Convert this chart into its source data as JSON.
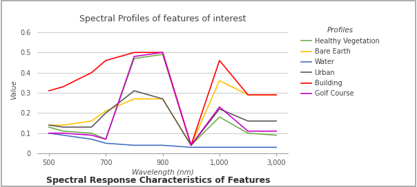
{
  "title": "Spectral Profiles of features of interest",
  "subtitle": "Spectral Response Characteristics of Features",
  "xlabel": "Wavelength (nm)",
  "ylabel": "Value",
  "legend_title": "Profiles",
  "ylim": [
    0.0,
    0.63
  ],
  "yticks": [
    0.0,
    0.1,
    0.2,
    0.3,
    0.4,
    0.5,
    0.6
  ],
  "xtick_positions": [
    0,
    1,
    2,
    3,
    4
  ],
  "xtick_labels": [
    "500",
    "700",
    "900",
    "1,000",
    "3,000"
  ],
  "series": {
    "Healthy Vegetation": {
      "color": "#70ad47",
      "x": [
        0,
        0.25,
        0.75,
        1.0,
        1.5,
        2.0,
        2.5,
        3.0,
        3.5,
        4.0
      ],
      "y": [
        0.13,
        0.11,
        0.1,
        0.07,
        0.47,
        0.49,
        0.04,
        0.18,
        0.1,
        0.09
      ]
    },
    "Bare Earth": {
      "color": "#ffc000",
      "x": [
        0,
        0.25,
        0.75,
        1.0,
        1.5,
        2.0,
        2.5,
        3.0,
        3.5,
        4.0
      ],
      "y": [
        0.14,
        0.14,
        0.16,
        0.21,
        0.27,
        0.27,
        0.04,
        0.36,
        0.29,
        0.29
      ]
    },
    "Water": {
      "color": "#4472c4",
      "x": [
        0,
        0.25,
        0.75,
        1.0,
        1.5,
        2.0,
        2.5,
        3.0,
        3.5,
        4.0
      ],
      "y": [
        0.1,
        0.09,
        0.07,
        0.05,
        0.04,
        0.04,
        0.03,
        0.03,
        0.03,
        0.03
      ]
    },
    "Urban": {
      "color": "#595959",
      "x": [
        0,
        0.25,
        0.75,
        1.0,
        1.5,
        2.0,
        2.5,
        3.0,
        3.5,
        4.0
      ],
      "y": [
        0.14,
        0.13,
        0.13,
        0.2,
        0.31,
        0.27,
        0.04,
        0.22,
        0.16,
        0.16
      ]
    },
    "Building": {
      "color": "#ff0000",
      "x": [
        0,
        0.25,
        0.75,
        1.0,
        1.5,
        2.0,
        2.5,
        3.0,
        3.5,
        4.0
      ],
      "y": [
        0.31,
        0.33,
        0.4,
        0.46,
        0.5,
        0.5,
        0.04,
        0.46,
        0.29,
        0.29
      ]
    },
    "Golf Course": {
      "color": "#cc00cc",
      "x": [
        0,
        0.25,
        0.75,
        1.0,
        1.5,
        2.0,
        2.5,
        3.0,
        3.5,
        4.0
      ],
      "y": [
        0.1,
        0.1,
        0.09,
        0.07,
        0.48,
        0.5,
        0.04,
        0.23,
        0.11,
        0.11
      ]
    }
  },
  "background_color": "#ffffff",
  "grid_color": "#c8c8c8",
  "border_color": "#a0a0a0"
}
